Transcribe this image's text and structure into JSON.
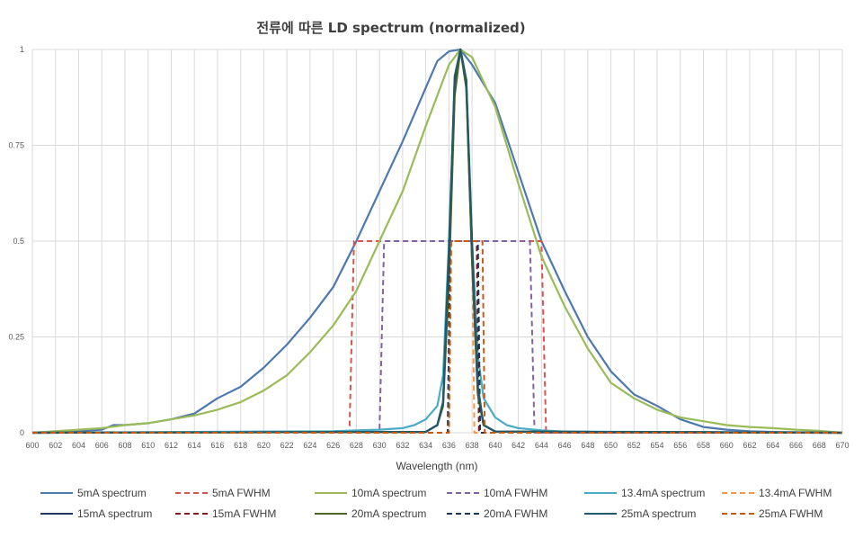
{
  "chart_data": {
    "type": "line",
    "title": "전류에 따른 LD spectrum (normalized)",
    "xlabel": "Wavelength  (nm)",
    "ylabel": "",
    "xlim": [
      600,
      670
    ],
    "ylim": [
      0,
      1
    ],
    "x_ticks": [
      600,
      602,
      604,
      606,
      608,
      610,
      612,
      614,
      616,
      618,
      620,
      622,
      624,
      626,
      628,
      630,
      632,
      634,
      636,
      638,
      640,
      642,
      644,
      646,
      648,
      650,
      652,
      654,
      656,
      658,
      660,
      662,
      664,
      666,
      668,
      670
    ],
    "x_tick_labels": [
      "600",
      "602",
      "604",
      "606",
      "608",
      "610",
      "612",
      "614",
      "616",
      "618",
      "620",
      "622",
      "624",
      "626",
      "628",
      "630",
      "632",
      "634",
      "636",
      "638",
      "640",
      "642",
      "644",
      "646",
      "648",
      "650",
      "652",
      "654",
      "656",
      "658",
      "660",
      "662",
      "664",
      "666",
      "668",
      "670"
    ],
    "y_ticks": [
      0,
      0.25,
      0.5,
      0.75,
      1
    ],
    "y_tick_labels": [
      "0",
      "0.25",
      "0.5",
      "0.75",
      "1"
    ],
    "grid": true,
    "legend_position": "bottom",
    "series": [
      {
        "name": "5mA spectrum",
        "color": "#4E79B0",
        "dash": false,
        "x": [
          600,
          604,
          606,
          607,
          608,
          610,
          612,
          614,
          616,
          618,
          620,
          622,
          624,
          626,
          628,
          630,
          632,
          634,
          635,
          636,
          637,
          638,
          640,
          642,
          644,
          646,
          648,
          650,
          652,
          654,
          656,
          658,
          660,
          662,
          664,
          670
        ],
        "y": [
          0,
          0.005,
          0.008,
          0.02,
          0.02,
          0.025,
          0.035,
          0.05,
          0.09,
          0.12,
          0.17,
          0.23,
          0.3,
          0.38,
          0.5,
          0.63,
          0.76,
          0.9,
          0.97,
          0.995,
          1,
          0.96,
          0.86,
          0.68,
          0.5,
          0.37,
          0.25,
          0.16,
          0.1,
          0.07,
          0.035,
          0.015,
          0.008,
          0.004,
          0.002,
          0
        ]
      },
      {
        "name": "5mA FWHM",
        "color": "#D9534F",
        "dash": true,
        "x": [
          600,
          627.4,
          627.8,
          644,
          644.4,
          670
        ],
        "y": [
          0,
          0,
          0.5,
          0.5,
          0,
          0
        ]
      },
      {
        "name": "10mA spectrum",
        "color": "#9BBB59",
        "dash": false,
        "x": [
          600,
          604,
          606,
          608,
          610,
          612,
          614,
          616,
          618,
          620,
          622,
          624,
          626,
          628,
          630,
          632,
          634,
          636,
          637,
          638,
          640,
          642,
          644,
          646,
          648,
          650,
          652,
          654,
          656,
          658,
          660,
          662,
          664,
          666,
          668,
          670
        ],
        "y": [
          0,
          0.008,
          0.012,
          0.02,
          0.025,
          0.035,
          0.045,
          0.06,
          0.08,
          0.11,
          0.15,
          0.21,
          0.28,
          0.37,
          0.5,
          0.63,
          0.8,
          0.96,
          1,
          0.98,
          0.85,
          0.65,
          0.46,
          0.33,
          0.22,
          0.13,
          0.09,
          0.06,
          0.04,
          0.03,
          0.02,
          0.015,
          0.012,
          0.008,
          0.005,
          0
        ]
      },
      {
        "name": "10mA FWHM",
        "color": "#8064A2",
        "dash": true,
        "x": [
          600,
          630,
          630.4,
          643,
          643.4,
          670
        ],
        "y": [
          0,
          0,
          0.5,
          0.5,
          0,
          0
        ]
      },
      {
        "name": "13.4mA spectrum",
        "color": "#4BACC6",
        "dash": false,
        "x": [
          600,
          626,
          628,
          630,
          632,
          633,
          634,
          635,
          635.5,
          636,
          636.5,
          637,
          637.5,
          638,
          638.5,
          639,
          640,
          641,
          642,
          644,
          646,
          670
        ],
        "y": [
          0,
          0.004,
          0.006,
          0.008,
          0.012,
          0.02,
          0.035,
          0.07,
          0.15,
          0.5,
          0.9,
          1,
          0.9,
          0.5,
          0.2,
          0.09,
          0.04,
          0.02,
          0.012,
          0.006,
          0.003,
          0
        ]
      },
      {
        "name": "13.4mA FWHM",
        "color": "#F79646",
        "dash": true,
        "x": [
          600,
          636,
          636.2,
          638,
          638.2,
          670
        ],
        "y": [
          0,
          0,
          0.5,
          0.5,
          0,
          0
        ]
      },
      {
        "name": "15mA spectrum",
        "color": "#1F3864",
        "dash": false,
        "x": [
          600,
          634,
          635,
          635.5,
          636,
          636.5,
          637,
          637.5,
          638,
          638.5,
          639,
          640,
          670
        ],
        "y": [
          0,
          0.002,
          0.02,
          0.08,
          0.45,
          0.92,
          1,
          0.92,
          0.45,
          0.1,
          0.02,
          0.003,
          0
        ]
      },
      {
        "name": "15mA FWHM",
        "color": "#7F1F1F",
        "dash": true,
        "x": [
          600,
          635.9,
          636.1,
          638.4,
          638.6,
          670
        ],
        "y": [
          0,
          0,
          0.5,
          0.5,
          0,
          0
        ]
      },
      {
        "name": "20mA spectrum",
        "color": "#4F6228",
        "dash": false,
        "x": [
          600,
          634,
          635,
          635.5,
          636,
          636.5,
          637,
          637.5,
          638,
          638.5,
          639,
          640,
          670
        ],
        "y": [
          0,
          0.002,
          0.02,
          0.07,
          0.4,
          0.88,
          1,
          0.9,
          0.45,
          0.1,
          0.02,
          0.003,
          0
        ]
      },
      {
        "name": "20mA FWHM",
        "color": "#17375E",
        "dash": true,
        "x": [
          600,
          635.9,
          636.1,
          638.5,
          638.7,
          670
        ],
        "y": [
          0,
          0,
          0.5,
          0.5,
          0,
          0
        ]
      },
      {
        "name": "25mA spectrum",
        "color": "#215968",
        "dash": false,
        "x": [
          600,
          634,
          635,
          635.5,
          636,
          636.5,
          637,
          637.5,
          638,
          638.5,
          639,
          640,
          670
        ],
        "y": [
          0,
          0.002,
          0.02,
          0.08,
          0.48,
          0.93,
          1,
          0.92,
          0.5,
          0.12,
          0.02,
          0.003,
          0
        ]
      },
      {
        "name": "25mA FWHM",
        "color": "#C55A11",
        "dash": true,
        "x": [
          600,
          636,
          636.2,
          638.9,
          639.1,
          670
        ],
        "y": [
          0,
          0,
          0.5,
          0.5,
          0,
          0
        ]
      }
    ]
  }
}
